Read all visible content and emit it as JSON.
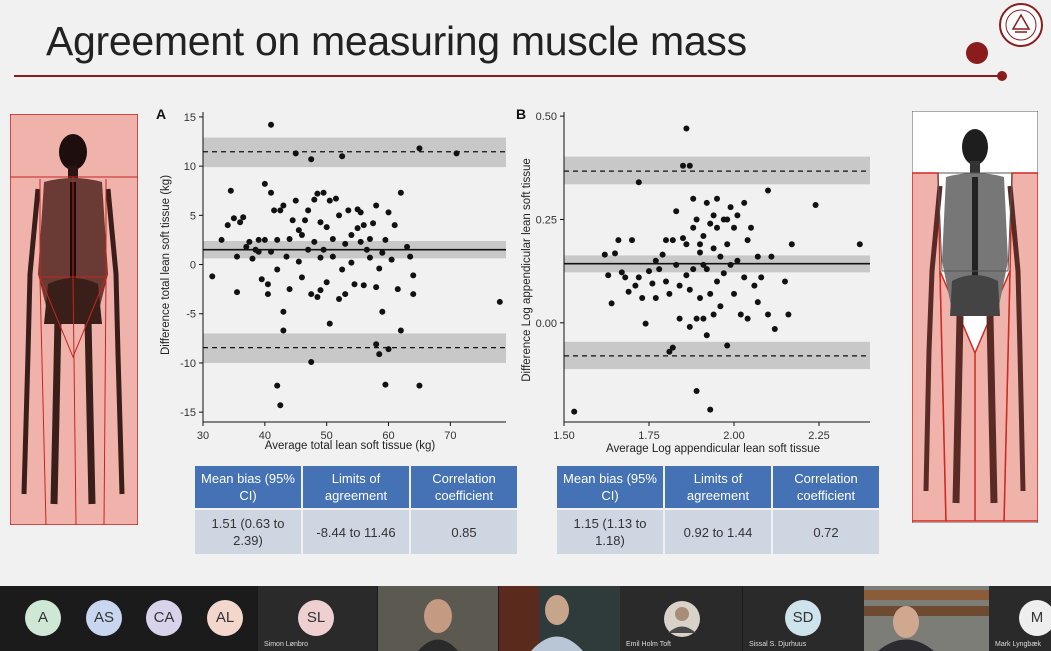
{
  "slide": {
    "title": "Agreement on measuring muscle mass",
    "accent_color": "#8a1c1c"
  },
  "panel_a": {
    "label": "A",
    "xlabel": "Average total lean soft tissue (kg)",
    "ylabel": "Difference total lean soft tissue (kg)",
    "x_ticks": [
      "30",
      "40",
      "50",
      "60",
      "70"
    ],
    "y_ticks": [
      "15",
      "10",
      "5",
      "0",
      "-5",
      "-10",
      "-15"
    ],
    "table": {
      "headers": [
        "Mean bias (95% CI)",
        "Limits of agreement",
        "Correlation coefficient"
      ],
      "values": [
        "1.51 (0.63 to 2.39)",
        "-8.44 to 11.46",
        "0.85"
      ]
    }
  },
  "panel_b": {
    "label": "B",
    "xlabel": "Average Log appendicular lean soft tissue",
    "ylabel": "Difference Log appendicular lean soft tissue",
    "x_ticks": [
      "1.50",
      "1.75",
      "2.00",
      "2.25"
    ],
    "y_ticks": [
      "0.50",
      "0.25",
      "0.00"
    ],
    "table": {
      "headers": [
        "Mean bias (95% CI)",
        "Limits of agreement",
        "Correlation coefficient"
      ],
      "values": [
        "1.15 (1.13 to 1.18)",
        "0.92 to 1.44",
        "0.72"
      ]
    }
  },
  "chart_data": [
    {
      "type": "scatter",
      "title": "",
      "xlabel": "Average total lean soft tissue (kg)",
      "ylabel": "Difference total lean soft tissue (kg)",
      "xlim": [
        30,
        79
      ],
      "ylim": [
        -16,
        15.5
      ],
      "x_ticks": [
        30,
        40,
        50,
        60,
        70
      ],
      "y_ticks": [
        -15,
        -10,
        -5,
        0,
        5,
        10,
        15
      ],
      "mean_line": 1.51,
      "mean_band": [
        0.63,
        2.39
      ],
      "upper_loa": 11.46,
      "upper_band": [
        9.9,
        12.9
      ],
      "lower_loa": -8.44,
      "lower_band": [
        -10.0,
        -7.0
      ],
      "points": [
        [
          31.5,
          -1.2
        ],
        [
          33,
          2.5
        ],
        [
          34,
          4
        ],
        [
          34.5,
          7.5
        ],
        [
          35,
          4.7
        ],
        [
          35.5,
          0.8
        ],
        [
          35.5,
          -2.8
        ],
        [
          36,
          4.3
        ],
        [
          36.5,
          4.8
        ],
        [
          37,
          1.8
        ],
        [
          37.5,
          2.3
        ],
        [
          38,
          0.6
        ],
        [
          38.5,
          1.5
        ],
        [
          39,
          1.3
        ],
        [
          39,
          2.5
        ],
        [
          39.5,
          -1.5
        ],
        [
          40,
          8.2
        ],
        [
          40,
          2.5
        ],
        [
          40.5,
          -2
        ],
        [
          40.5,
          -3
        ],
        [
          41,
          7.3
        ],
        [
          41,
          1.3
        ],
        [
          41,
          14.2
        ],
        [
          41.5,
          5.5
        ],
        [
          42,
          2.5
        ],
        [
          42,
          -0.5
        ],
        [
          42,
          -12.3
        ],
        [
          42.5,
          -14.3
        ],
        [
          42.5,
          5.5
        ],
        [
          43,
          6
        ],
        [
          43,
          -4.8
        ],
        [
          43,
          -6.7
        ],
        [
          43.5,
          0.8
        ],
        [
          44,
          2.6
        ],
        [
          44,
          -2.5
        ],
        [
          44.5,
          4.5
        ],
        [
          45,
          6.5
        ],
        [
          45,
          11.3
        ],
        [
          45.5,
          3.5
        ],
        [
          45.5,
          0.3
        ],
        [
          46,
          3
        ],
        [
          46,
          -1.3
        ],
        [
          46.5,
          4.5
        ],
        [
          47,
          1.5
        ],
        [
          47,
          5.5
        ],
        [
          47.5,
          -3
        ],
        [
          47.5,
          -9.9
        ],
        [
          47.5,
          10.7
        ],
        [
          48,
          6.6
        ],
        [
          48,
          2.3
        ],
        [
          48.5,
          7.2
        ],
        [
          48.5,
          -3.3
        ],
        [
          49,
          0.7
        ],
        [
          49,
          4.3
        ],
        [
          49,
          -2.6
        ],
        [
          49.5,
          7.3
        ],
        [
          49.5,
          1.5
        ],
        [
          50,
          3.8
        ],
        [
          50,
          -1.8
        ],
        [
          50.5,
          6.5
        ],
        [
          50.5,
          -6
        ],
        [
          51,
          2.6
        ],
        [
          51,
          0.8
        ],
        [
          51.5,
          6.7
        ],
        [
          52,
          5
        ],
        [
          52,
          -3.5
        ],
        [
          52.5,
          11
        ],
        [
          52.5,
          -0.5
        ],
        [
          53,
          2.1
        ],
        [
          53,
          -3
        ],
        [
          53.5,
          5.5
        ],
        [
          54,
          3
        ],
        [
          54,
          0.2
        ],
        [
          54.5,
          -2
        ],
        [
          55,
          3.7
        ],
        [
          55,
          5.6
        ],
        [
          55.5,
          5.3
        ],
        [
          55.5,
          2.3
        ],
        [
          56,
          4
        ],
        [
          56,
          -2.1
        ],
        [
          56.5,
          1.5
        ],
        [
          57,
          2.6
        ],
        [
          57,
          0.7
        ],
        [
          57.5,
          4.2
        ],
        [
          58,
          6
        ],
        [
          58,
          -2.3
        ],
        [
          58,
          -8.1
        ],
        [
          58.5,
          -9.1
        ],
        [
          58.5,
          -0.4
        ],
        [
          59,
          1.2
        ],
        [
          59,
          -4.8
        ],
        [
          59.5,
          2.5
        ],
        [
          59.5,
          -12.2
        ],
        [
          60,
          5.3
        ],
        [
          60,
          -8.6
        ],
        [
          60.5,
          0.5
        ],
        [
          61,
          4
        ],
        [
          61.5,
          -2.5
        ],
        [
          62,
          7.3
        ],
        [
          62,
          -6.7
        ],
        [
          63,
          1.8
        ],
        [
          63.5,
          0.8
        ],
        [
          64,
          -3
        ],
        [
          64,
          -1.1
        ],
        [
          65,
          11.8
        ],
        [
          65,
          -12.3
        ],
        [
          71,
          11.3
        ],
        [
          78,
          -3.8
        ]
      ]
    },
    {
      "type": "scatter",
      "title": "",
      "xlabel": "Average Log appendicular lean soft tissue",
      "ylabel": "Difference Log appendicular lean soft tissue",
      "xlim": [
        1.5,
        2.4
      ],
      "ylim": [
        -0.24,
        0.51
      ],
      "x_ticks": [
        1.5,
        1.75,
        2.0,
        2.25
      ],
      "y_ticks": [
        0.0,
        0.25,
        0.5
      ],
      "mean_line": 0.143,
      "mean_band": [
        0.122,
        0.163
      ],
      "upper_loa": 0.367,
      "upper_band": [
        0.335,
        0.402
      ],
      "lower_loa": -0.08,
      "lower_band": [
        -0.112,
        -0.046
      ],
      "points": [
        [
          1.53,
          -0.215
        ],
        [
          1.62,
          0.165
        ],
        [
          1.63,
          0.115
        ],
        [
          1.64,
          0.047
        ],
        [
          1.65,
          0.168
        ],
        [
          1.66,
          0.2
        ],
        [
          1.67,
          0.122
        ],
        [
          1.68,
          0.11
        ],
        [
          1.69,
          0.075
        ],
        [
          1.7,
          0.2
        ],
        [
          1.71,
          0.09
        ],
        [
          1.72,
          0.11
        ],
        [
          1.72,
          0.34
        ],
        [
          1.73,
          0.06
        ],
        [
          1.74,
          -0.002
        ],
        [
          1.75,
          0.125
        ],
        [
          1.76,
          0.095
        ],
        [
          1.77,
          0.15
        ],
        [
          1.77,
          0.06
        ],
        [
          1.78,
          0.13
        ],
        [
          1.79,
          0.165
        ],
        [
          1.8,
          0.2
        ],
        [
          1.8,
          0.1
        ],
        [
          1.81,
          0.07
        ],
        [
          1.81,
          -0.07
        ],
        [
          1.82,
          0.2
        ],
        [
          1.82,
          -0.06
        ],
        [
          1.83,
          0.14
        ],
        [
          1.83,
          0.27
        ],
        [
          1.84,
          0.09
        ],
        [
          1.84,
          0.01
        ],
        [
          1.85,
          0.205
        ],
        [
          1.85,
          0.38
        ],
        [
          1.86,
          0.47
        ],
        [
          1.86,
          0.19
        ],
        [
          1.86,
          0.115
        ],
        [
          1.87,
          0.38
        ],
        [
          1.87,
          0.08
        ],
        [
          1.87,
          -0.01
        ],
        [
          1.88,
          0.23
        ],
        [
          1.88,
          0.3
        ],
        [
          1.88,
          0.13
        ],
        [
          1.89,
          0.25
        ],
        [
          1.89,
          -0.165
        ],
        [
          1.89,
          0.01
        ],
        [
          1.9,
          0.06
        ],
        [
          1.9,
          0.17
        ],
        [
          1.9,
          0.19
        ],
        [
          1.91,
          0.14
        ],
        [
          1.91,
          0.21
        ],
        [
          1.91,
          0.01
        ],
        [
          1.92,
          0.29
        ],
        [
          1.92,
          0.13
        ],
        [
          1.92,
          -0.03
        ],
        [
          1.93,
          0.24
        ],
        [
          1.93,
          0.07
        ],
        [
          1.93,
          -0.21
        ],
        [
          1.94,
          0.26
        ],
        [
          1.94,
          0.18
        ],
        [
          1.94,
          0.02
        ],
        [
          1.95,
          0.3
        ],
        [
          1.95,
          0.23
        ],
        [
          1.95,
          0.1
        ],
        [
          1.96,
          0.16
        ],
        [
          1.96,
          0.04
        ],
        [
          1.97,
          0.25
        ],
        [
          1.97,
          0.12
        ],
        [
          1.98,
          0.25
        ],
        [
          1.98,
          0.19
        ],
        [
          1.98,
          -0.055
        ],
        [
          1.99,
          0.28
        ],
        [
          1.99,
          0.14
        ],
        [
          2.0,
          0.23
        ],
        [
          2.0,
          0.07
        ],
        [
          2.01,
          0.26
        ],
        [
          2.01,
          0.15
        ],
        [
          2.02,
          0.02
        ],
        [
          2.03,
          0.29
        ],
        [
          2.03,
          0.11
        ],
        [
          2.04,
          0.2
        ],
        [
          2.04,
          0.01
        ],
        [
          2.05,
          0.23
        ],
        [
          2.06,
          0.09
        ],
        [
          2.07,
          0.16
        ],
        [
          2.07,
          0.05
        ],
        [
          2.08,
          0.11
        ],
        [
          2.1,
          0.02
        ],
        [
          2.1,
          0.32
        ],
        [
          2.11,
          0.16
        ],
        [
          2.12,
          -0.015
        ],
        [
          2.15,
          0.1
        ],
        [
          2.16,
          0.02
        ],
        [
          2.17,
          0.19
        ],
        [
          2.24,
          0.285
        ],
        [
          2.37,
          0.19
        ]
      ]
    }
  ],
  "taskbar": {
    "participants": [
      {
        "initials": "A",
        "name": "",
        "color": "#cfe8d6"
      },
      {
        "initials": "AS",
        "name": "",
        "color": "#c8d6ef"
      },
      {
        "initials": "CA",
        "name": "",
        "color": "#d8d2ea"
      },
      {
        "initials": "AL",
        "name": "",
        "color": "#f3d7cc"
      },
      {
        "initials": "SL",
        "name": "Simon Lønbro",
        "color": "#efd0d0"
      },
      {
        "initials": "",
        "name": "",
        "color": "#ddd"
      },
      {
        "initials": "",
        "name": "",
        "color": "#ddd"
      },
      {
        "initials": "",
        "name": "Emil Holm Toft",
        "color": "#ddd"
      },
      {
        "initials": "SD",
        "name": "Sissal S. Djurhuus",
        "color": "#cfe3ec"
      },
      {
        "initials": "",
        "name": "",
        "color": "#ddd"
      },
      {
        "initials": "M",
        "name": "Mark Lyngbæk",
        "color": "#eee"
      }
    ]
  }
}
